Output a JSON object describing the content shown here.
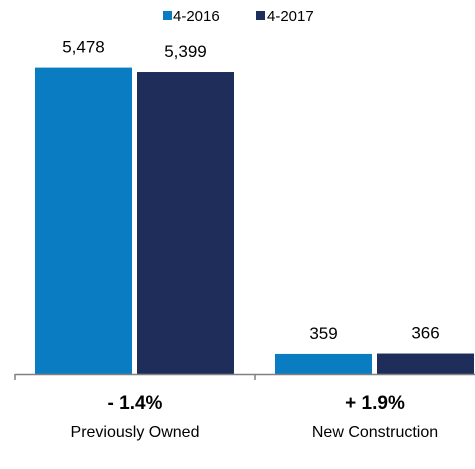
{
  "chart_data": {
    "type": "bar",
    "categories": [
      "Previously Owned",
      "New Construction"
    ],
    "category_changes": [
      "- 1.4%",
      "+ 1.9%"
    ],
    "series": [
      {
        "name": "4-2016",
        "values": [
          5478,
          359
        ],
        "labels": [
          "5,478",
          "359"
        ],
        "color": "#0a7cc2"
      },
      {
        "name": "4-2017",
        "values": [
          5399,
          366
        ],
        "labels": [
          "5,399",
          "366"
        ],
        "color": "#1f2d5a"
      }
    ],
    "ylim": [
      0,
      5900
    ],
    "legend_position": "top-center",
    "grid": false,
    "axis_color": "#808080"
  }
}
